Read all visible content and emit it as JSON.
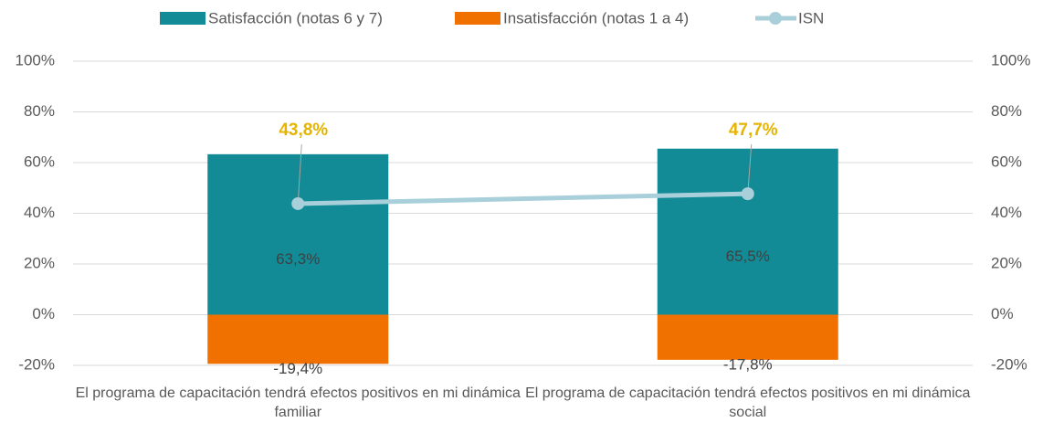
{
  "chart_data": {
    "type": "bar",
    "categories": [
      "El programa de capacitación tendrá efectos positivos en mi dinámica familiar",
      "El programa de capacitación tendrá efectos positivos en mi dinámica social"
    ],
    "series": [
      {
        "name": "Satisfacción (notas 6 y 7)",
        "color": "#128b96",
        "values": [
          63.3,
          65.5
        ],
        "value_labels": [
          "63,3%",
          "65,5%"
        ]
      },
      {
        "name": "Insatisfacción (notas 1 a 4)",
        "color": "#f07000",
        "values": [
          -19.4,
          -17.8
        ],
        "value_labels": [
          "-19,4%",
          "-17,8%"
        ]
      },
      {
        "name": "ISN",
        "type": "line",
        "axis": "y2",
        "color": "#a9d0da",
        "label_color": "#e6b400",
        "values": [
          43.8,
          47.7
        ],
        "value_labels": [
          "43,8%",
          "47,7%"
        ]
      }
    ],
    "stacked": true,
    "ylim": [
      -20,
      100
    ],
    "yticks": [
      {
        "value": -20,
        "label": "-20%"
      },
      {
        "value": 0,
        "label": "0%"
      },
      {
        "value": 20,
        "label": "20%"
      },
      {
        "value": 40,
        "label": "40%"
      },
      {
        "value": 60,
        "label": "60%"
      },
      {
        "value": 80,
        "label": "80%"
      },
      {
        "value": 100,
        "label": "100%"
      }
    ],
    "y2lim": [
      -20,
      100
    ],
    "y2ticks": [
      {
        "value": -20,
        "label": "-20%"
      },
      {
        "value": 0,
        "label": "0%"
      },
      {
        "value": 20,
        "label": "20%"
      },
      {
        "value": 40,
        "label": "40%"
      },
      {
        "value": 60,
        "label": "60%"
      },
      {
        "value": 80,
        "label": "80%"
      },
      {
        "value": 100,
        "label": "100%"
      }
    ],
    "grid": true,
    "legend": "top"
  }
}
